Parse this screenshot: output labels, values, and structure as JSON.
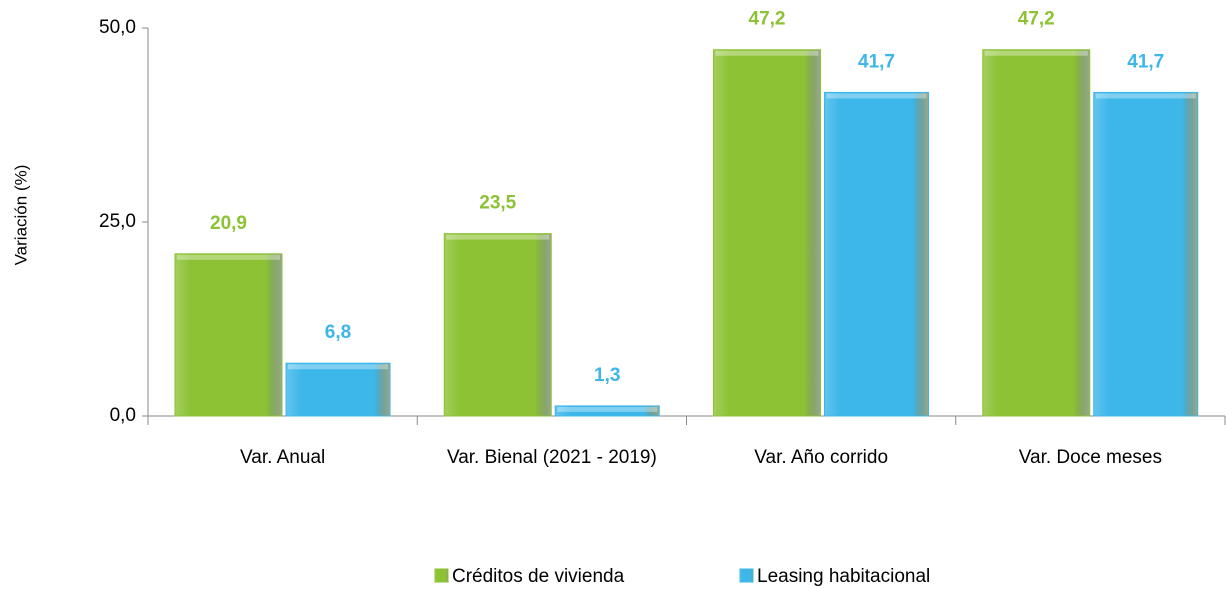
{
  "chart_data": {
    "type": "bar",
    "y_label": "Variación (%)",
    "categories": [
      "Var. Anual",
      "Var. Bienal (2021 - 2019)",
      "Var. Año corrido",
      "Var. Doce meses"
    ],
    "series": [
      {
        "name": "Créditos de vivienda",
        "color": "#8cc234",
        "values": [
          20.9,
          23.5,
          47.2,
          47.2
        ],
        "value_labels": [
          "20,9",
          "23,5",
          "47,2",
          "47,2"
        ]
      },
      {
        "name": "Leasing habitacional",
        "color": "#3db6ea",
        "values": [
          6.8,
          1.3,
          41.7,
          41.7
        ],
        "value_labels": [
          "6,8",
          "1,3",
          "41,7",
          "41,7"
        ]
      }
    ],
    "ylim": [
      0,
      50
    ],
    "yticks": [
      {
        "value": 0,
        "label": "0,0"
      },
      {
        "value": 25,
        "label": "25,0"
      },
      {
        "value": 50,
        "label": "50,0"
      }
    ],
    "legend": "bottom"
  }
}
